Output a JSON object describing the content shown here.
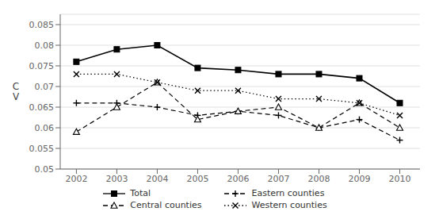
{
  "chart_data": {
    "type": "line",
    "ylabel": "C\nV",
    "x": [
      2002,
      2003,
      2004,
      2005,
      2006,
      2007,
      2008,
      2009,
      2010
    ],
    "xlim": [
      2001.6,
      2010.5
    ],
    "xticks": [
      2002,
      2003,
      2004,
      2005,
      2006,
      2007,
      2008,
      2009,
      2010
    ],
    "ylim": [
      0.05,
      0.0875
    ],
    "yticks": [
      0.05,
      0.055,
      0.06,
      0.065,
      0.07,
      0.075,
      0.08,
      0.085
    ],
    "grid": "y",
    "legend": "bottom",
    "series": [
      {
        "name": "Total",
        "color": "#000000",
        "marker": "square",
        "line_style": "solid",
        "values": [
          0.076,
          0.079,
          0.08,
          0.0745,
          0.074,
          0.073,
          0.073,
          0.072,
          0.066
        ]
      },
      {
        "name": "Eastern counties",
        "color": "#000000",
        "marker": "plus",
        "line_style": "dashed",
        "values": [
          0.066,
          0.066,
          0.065,
          0.063,
          0.064,
          0.063,
          0.06,
          0.062,
          0.057
        ]
      },
      {
        "name": "Central counties",
        "color": "#000000",
        "marker": "triangle",
        "line_style": "dashed",
        "values": [
          0.059,
          0.065,
          0.071,
          0.062,
          0.064,
          0.065,
          0.06,
          0.066,
          0.06
        ]
      },
      {
        "name": "Western counties",
        "color": "#000000",
        "marker": "x",
        "line_style": "dotted",
        "values": [
          0.073,
          0.073,
          0.071,
          0.069,
          0.069,
          0.067,
          0.067,
          0.066,
          0.063
        ]
      }
    ]
  }
}
